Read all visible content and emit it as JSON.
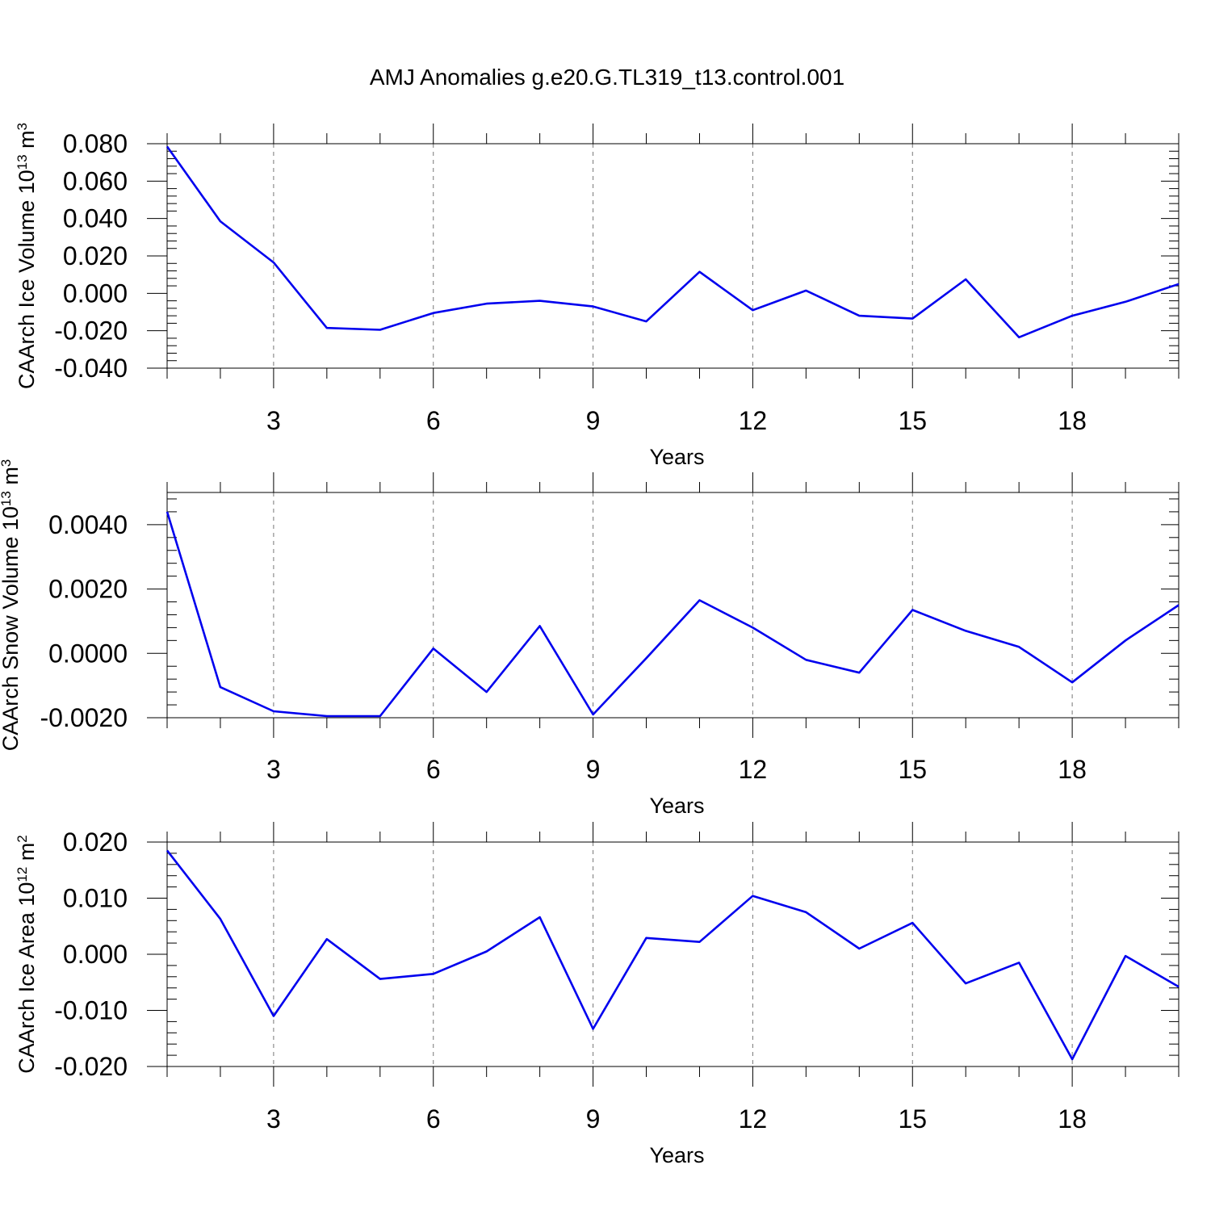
{
  "title": "AMJ Anomalies g.e20.G.TL319_t13.control.001",
  "colors": {
    "line": "#0000ee",
    "grid": "#777777",
    "frame": "#000000"
  },
  "chart_data": [
    {
      "type": "line",
      "title": "AMJ Anomalies g.e20.G.TL319_t13.control.001",
      "xlabel": "Years",
      "ylabel": {
        "prefix": "CAArch Ice Volume 10",
        "exp": "13",
        "unit_base": " m",
        "unit_exp": "3"
      },
      "x": [
        1,
        2,
        3,
        4,
        5,
        6,
        7,
        8,
        9,
        10,
        11,
        12,
        13,
        14,
        15,
        16,
        17,
        18,
        19,
        20
      ],
      "values": [
        0.0785,
        0.0385,
        0.0165,
        -0.0185,
        -0.0195,
        -0.0105,
        -0.0055,
        -0.004,
        -0.007,
        -0.015,
        0.0115,
        -0.009,
        0.0015,
        -0.012,
        -0.0135,
        0.0075,
        -0.0235,
        -0.012,
        -0.0045,
        0.005
      ],
      "xlim": [
        1,
        20
      ],
      "ylim": [
        -0.04,
        0.08
      ],
      "xticks": [
        3,
        6,
        9,
        12,
        15,
        18
      ],
      "xtick_labels": [
        "3",
        "6",
        "9",
        "12",
        "15",
        "18"
      ],
      "yticks": [
        -0.04,
        -0.02,
        0,
        0.02,
        0.04,
        0.06,
        0.08
      ],
      "ytick_labels": [
        "-0.040",
        "-0.020",
        "0.000",
        "0.020",
        "0.040",
        "0.060",
        "0.080"
      ],
      "grid": "vertical dashed at x ticks"
    },
    {
      "type": "line",
      "xlabel": "Years",
      "ylabel": {
        "prefix": "CAArch Snow Volume 10",
        "exp": "13",
        "unit_base": " m",
        "unit_exp": "3"
      },
      "x": [
        1,
        2,
        3,
        4,
        5,
        6,
        7,
        8,
        9,
        10,
        11,
        12,
        13,
        14,
        15,
        16,
        17,
        18,
        19,
        20
      ],
      "values": [
        0.0044,
        -0.00105,
        -0.0018,
        -0.00195,
        -0.00195,
        0.00015,
        -0.0012,
        0.00085,
        -0.0019,
        -0.00015,
        0.00165,
        0.0008,
        -0.0002,
        -0.0006,
        0.00135,
        0.0007,
        0.0002,
        -0.0009,
        0.0004,
        0.0015
      ],
      "xlim": [
        1,
        20
      ],
      "ylim": [
        -0.002,
        0.005
      ],
      "xticks": [
        3,
        6,
        9,
        12,
        15,
        18
      ],
      "xtick_labels": [
        "3",
        "6",
        "9",
        "12",
        "15",
        "18"
      ],
      "yticks": [
        -0.002,
        0,
        0.002,
        0.004
      ],
      "ytick_labels": [
        "-0.0020",
        "0.0000",
        "0.0020",
        "0.0040"
      ],
      "grid": "vertical dashed at x ticks"
    },
    {
      "type": "line",
      "xlabel": "Years",
      "ylabel": {
        "prefix": "CAArch Ice Area 10",
        "exp": "12",
        "unit_base": " m",
        "unit_exp": "2"
      },
      "x": [
        1,
        2,
        3,
        4,
        5,
        6,
        7,
        8,
        9,
        10,
        11,
        12,
        13,
        14,
        15,
        16,
        17,
        18,
        19,
        20
      ],
      "values": [
        0.0185,
        0.0063,
        -0.011,
        0.0027,
        -0.0044,
        -0.0035,
        0.0005,
        0.0066,
        -0.0133,
        0.0029,
        0.0022,
        0.0104,
        0.0075,
        0.001,
        0.0056,
        -0.0052,
        -0.0015,
        -0.0187,
        -0.0003,
        -0.0058
      ],
      "xlim": [
        1,
        20
      ],
      "ylim": [
        -0.02,
        0.02
      ],
      "xticks": [
        3,
        6,
        9,
        12,
        15,
        18
      ],
      "xtick_labels": [
        "3",
        "6",
        "9",
        "12",
        "15",
        "18"
      ],
      "yticks": [
        -0.02,
        -0.01,
        0,
        0.01,
        0.02
      ],
      "ytick_labels": [
        "-0.020",
        "-0.010",
        "0.000",
        "0.010",
        "0.020"
      ],
      "grid": "vertical dashed at x ticks"
    }
  ]
}
